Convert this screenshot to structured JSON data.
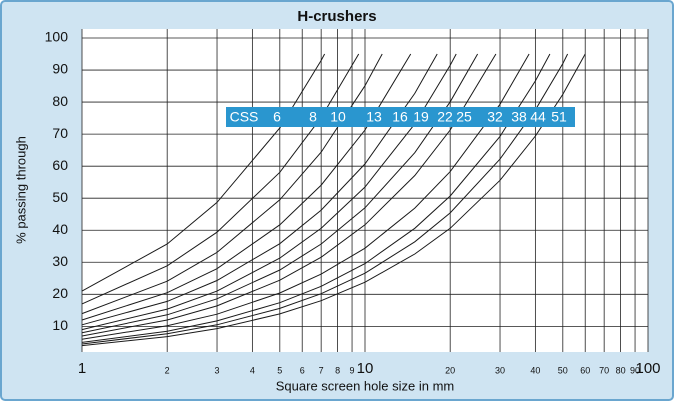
{
  "chart_data": {
    "type": "line",
    "title": "H-crushers",
    "x_label": "Square screen hole size in mm",
    "y_label": "% passing through",
    "legend_title": "CSS",
    "xscale": "log",
    "grid": true,
    "color": "#1a1a1a",
    "legend_color": "#2a96cf",
    "xlim": [
      1,
      100
    ],
    "ylim": [
      2,
      100
    ],
    "xticks": [
      1,
      2,
      3,
      4,
      5,
      6,
      7,
      8,
      9,
      10,
      20,
      30,
      40,
      50,
      60,
      70,
      80,
      90,
      100
    ],
    "yticks": [
      10,
      20,
      30,
      40,
      50,
      60,
      70,
      80,
      90,
      100
    ],
    "series": [
      {
        "name": "6",
        "x": [
          1,
          2,
          3,
          5,
          7,
          7.2
        ],
        "values": [
          21,
          35.7,
          48.7,
          71.9,
          93.0,
          95
        ]
      },
      {
        "name": "8",
        "x": [
          1,
          2,
          3,
          5,
          7,
          9.5
        ],
        "values": [
          17,
          28.9,
          39.4,
          58.1,
          75.2,
          95
        ]
      },
      {
        "name": "10",
        "x": [
          1,
          2,
          3,
          5,
          7,
          10,
          11.5
        ],
        "values": [
          14,
          24.1,
          33.1,
          49.5,
          64.4,
          85.1,
          95
        ]
      },
      {
        "name": "13",
        "x": [
          1,
          2,
          3,
          5,
          7,
          10,
          14.5
        ],
        "values": [
          12,
          20.5,
          28.0,
          41.7,
          54.1,
          71.3,
          95
        ]
      },
      {
        "name": "16",
        "x": [
          1,
          2,
          3,
          5,
          7,
          10,
          15,
          18
        ],
        "values": [
          10.5,
          17.8,
          24.3,
          35.8,
          46.3,
          60.7,
          82.7,
          95
        ]
      },
      {
        "name": "19",
        "x": [
          1,
          2,
          3,
          5,
          7,
          10,
          15,
          20,
          21
        ],
        "values": [
          9,
          15.4,
          21.0,
          31.3,
          40.6,
          53.5,
          73.2,
          91.5,
          95
        ]
      },
      {
        "name": "22",
        "x": [
          1,
          2,
          3,
          5,
          7,
          10,
          15,
          20,
          25
        ],
        "values": [
          8,
          13.6,
          18.6,
          27.6,
          35.7,
          47.0,
          64.2,
          80.1,
          95
        ]
      },
      {
        "name": "25",
        "x": [
          1,
          2,
          3,
          5,
          7,
          10,
          15,
          20,
          29
        ],
        "values": [
          7,
          12.0,
          16.4,
          24.4,
          31.6,
          41.7,
          57.1,
          71.3,
          95
        ]
      },
      {
        "name": "32",
        "x": [
          1,
          2,
          3,
          5,
          7,
          10,
          15,
          20,
          30,
          38
        ],
        "values": [
          6,
          10.2,
          13.8,
          20.4,
          26.3,
          34.4,
          46.9,
          58.3,
          79.3,
          95
        ]
      },
      {
        "name": "38",
        "x": [
          1,
          2,
          3,
          5,
          7,
          10,
          15,
          20,
          30,
          40,
          45
        ],
        "values": [
          5,
          8.5,
          11.7,
          17.4,
          22.5,
          29.6,
          40.6,
          50.7,
          69.3,
          86.6,
          95
        ]
      },
      {
        "name": "44",
        "x": [
          1,
          2,
          3,
          5,
          7,
          10,
          15,
          20,
          30,
          40,
          50,
          52
        ],
        "values": [
          4.5,
          7.7,
          10.5,
          15.6,
          20.2,
          26.6,
          36.4,
          45.4,
          62.2,
          77.6,
          92.0,
          95
        ]
      },
      {
        "name": "51",
        "x": [
          1,
          2,
          3,
          5,
          7,
          10,
          15,
          20,
          30,
          40,
          50,
          60
        ],
        "values": [
          4,
          6.8,
          9.3,
          13.9,
          18.0,
          23.8,
          32.6,
          40.6,
          55.6,
          69.4,
          82.4,
          95
        ]
      }
    ]
  }
}
